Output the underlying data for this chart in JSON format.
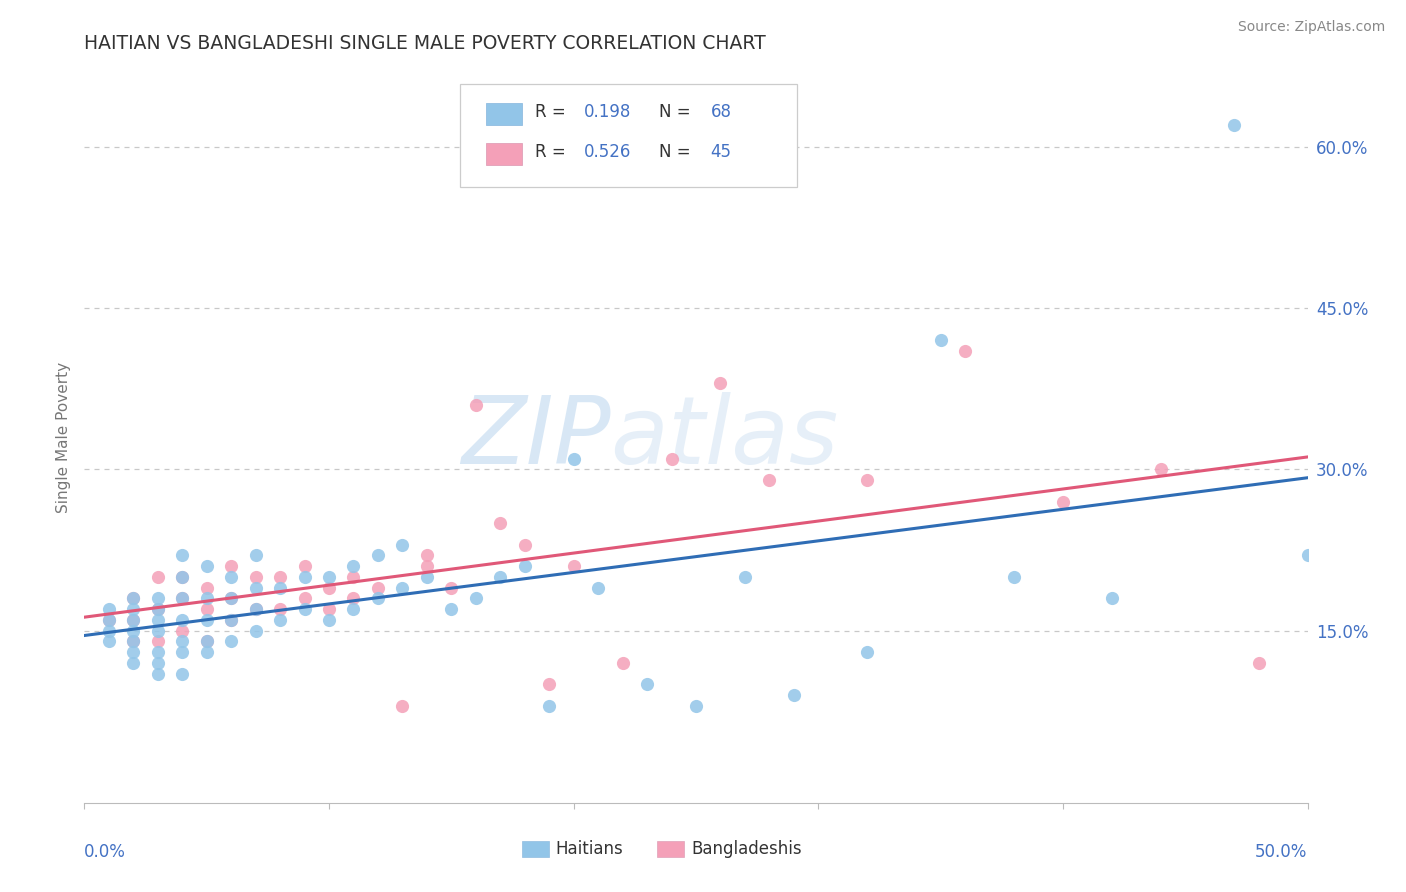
{
  "title": "HAITIAN VS BANGLADESHI SINGLE MALE POVERTY CORRELATION CHART",
  "source": "Source: ZipAtlas.com",
  "ylabel": "Single Male Poverty",
  "ytick_labels": [
    "15.0%",
    "30.0%",
    "45.0%",
    "60.0%"
  ],
  "ytick_vals": [
    0.15,
    0.3,
    0.45,
    0.6
  ],
  "xlim": [
    0.0,
    0.5
  ],
  "ylim": [
    -0.01,
    0.67
  ],
  "haitian_color": "#92c5e8",
  "bangladeshi_color": "#f4a0b8",
  "line_haitian_color": "#2f6db5",
  "line_bangladeshi_color": "#e05878",
  "blue_text_color": "#4472c4",
  "grid_color": "#c8c8c8",
  "title_color": "#333333",
  "haitian_x": [
    0.01,
    0.01,
    0.01,
    0.01,
    0.02,
    0.02,
    0.02,
    0.02,
    0.02,
    0.02,
    0.02,
    0.03,
    0.03,
    0.03,
    0.03,
    0.03,
    0.03,
    0.03,
    0.04,
    0.04,
    0.04,
    0.04,
    0.04,
    0.04,
    0.04,
    0.05,
    0.05,
    0.05,
    0.05,
    0.05,
    0.06,
    0.06,
    0.06,
    0.06,
    0.07,
    0.07,
    0.07,
    0.07,
    0.08,
    0.08,
    0.09,
    0.09,
    0.1,
    0.1,
    0.11,
    0.11,
    0.12,
    0.12,
    0.13,
    0.13,
    0.14,
    0.15,
    0.16,
    0.17,
    0.18,
    0.19,
    0.2,
    0.21,
    0.23,
    0.25,
    0.27,
    0.29,
    0.32,
    0.35,
    0.38,
    0.42,
    0.47,
    0.5
  ],
  "haitian_y": [
    0.14,
    0.15,
    0.16,
    0.17,
    0.12,
    0.13,
    0.14,
    0.15,
    0.16,
    0.17,
    0.18,
    0.11,
    0.12,
    0.13,
    0.15,
    0.16,
    0.17,
    0.18,
    0.11,
    0.13,
    0.14,
    0.16,
    0.18,
    0.2,
    0.22,
    0.13,
    0.14,
    0.16,
    0.18,
    0.21,
    0.14,
    0.16,
    0.18,
    0.2,
    0.15,
    0.17,
    0.19,
    0.22,
    0.16,
    0.19,
    0.17,
    0.2,
    0.16,
    0.2,
    0.17,
    0.21,
    0.18,
    0.22,
    0.19,
    0.23,
    0.2,
    0.17,
    0.18,
    0.2,
    0.21,
    0.08,
    0.31,
    0.19,
    0.1,
    0.08,
    0.2,
    0.09,
    0.13,
    0.42,
    0.2,
    0.18,
    0.62,
    0.22
  ],
  "bangladeshi_x": [
    0.01,
    0.02,
    0.02,
    0.02,
    0.03,
    0.03,
    0.03,
    0.04,
    0.04,
    0.04,
    0.05,
    0.05,
    0.05,
    0.06,
    0.06,
    0.06,
    0.07,
    0.07,
    0.08,
    0.08,
    0.09,
    0.09,
    0.1,
    0.1,
    0.11,
    0.11,
    0.12,
    0.13,
    0.14,
    0.14,
    0.15,
    0.16,
    0.17,
    0.18,
    0.19,
    0.2,
    0.22,
    0.24,
    0.26,
    0.28,
    0.32,
    0.36,
    0.4,
    0.44,
    0.48
  ],
  "bangladeshi_y": [
    0.16,
    0.14,
    0.16,
    0.18,
    0.14,
    0.17,
    0.2,
    0.15,
    0.18,
    0.2,
    0.14,
    0.17,
    0.19,
    0.16,
    0.18,
    0.21,
    0.17,
    0.2,
    0.17,
    0.2,
    0.18,
    0.21,
    0.17,
    0.19,
    0.18,
    0.2,
    0.19,
    0.08,
    0.21,
    0.22,
    0.19,
    0.36,
    0.25,
    0.23,
    0.1,
    0.21,
    0.12,
    0.31,
    0.38,
    0.29,
    0.29,
    0.41,
    0.27,
    0.3,
    0.12
  ]
}
